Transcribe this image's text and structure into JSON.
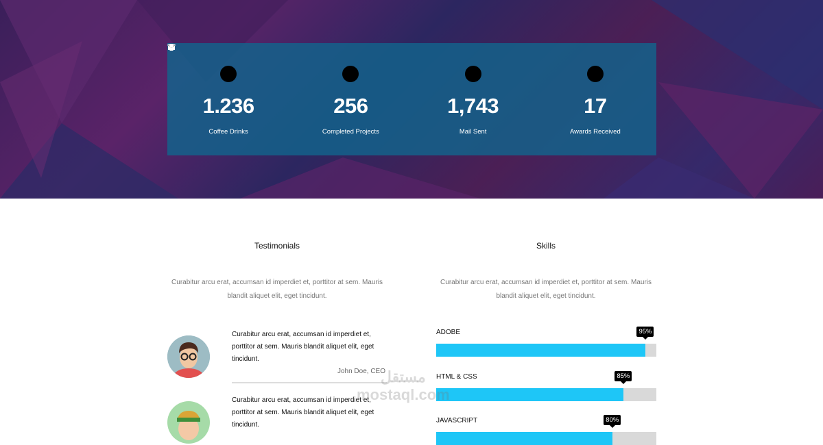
{
  "stats": [
    {
      "icon": "coffee-icon",
      "value": "1.236",
      "label": "Coffee Drinks"
    },
    {
      "icon": "folder-icon",
      "value": "256",
      "label": "Completed Projects"
    },
    {
      "icon": "envelope-icon",
      "value": "1,743",
      "label": "Mail Sent"
    },
    {
      "icon": "trophy-icon",
      "value": "17",
      "label": "Awards Received"
    }
  ],
  "testimonials": {
    "title": "Testimonials",
    "intro": "Curabitur arcu erat, accumsan id imperdiet et, porttitor at sem. Mauris blandit aliquet elit, eget tincidunt.",
    "items": [
      {
        "text": "Curabitur arcu erat, accumsan id imperdiet et, porttitor at sem. Mauris blandit aliquet elit, eget tincidunt.",
        "author": "John Doe, CEO"
      },
      {
        "text": "Curabitur arcu erat, accumsan id imperdiet et, porttitor at sem. Mauris blandit aliquet elit, eget tincidunt."
      }
    ]
  },
  "skills": {
    "title": "Skills",
    "intro": "Curabitur arcu erat, accumsan id imperdiet et, porttitor at sem. Mauris blandit aliquet elit, eget tincidunt.",
    "items": [
      {
        "name": "ADOBE",
        "percent": 95,
        "label": "95%"
      },
      {
        "name": "HTML & CSS",
        "percent": 85,
        "label": "85%"
      },
      {
        "name": "JAVASCRIPT",
        "percent": 80,
        "label": "80%"
      }
    ]
  },
  "colors": {
    "bar_fill": "#1ec6f7",
    "bar_track": "#d9d9d9",
    "stats_panel": "#12648c"
  },
  "watermark": {
    "arabic": "مستقل",
    "latin": "mostaql.com"
  }
}
